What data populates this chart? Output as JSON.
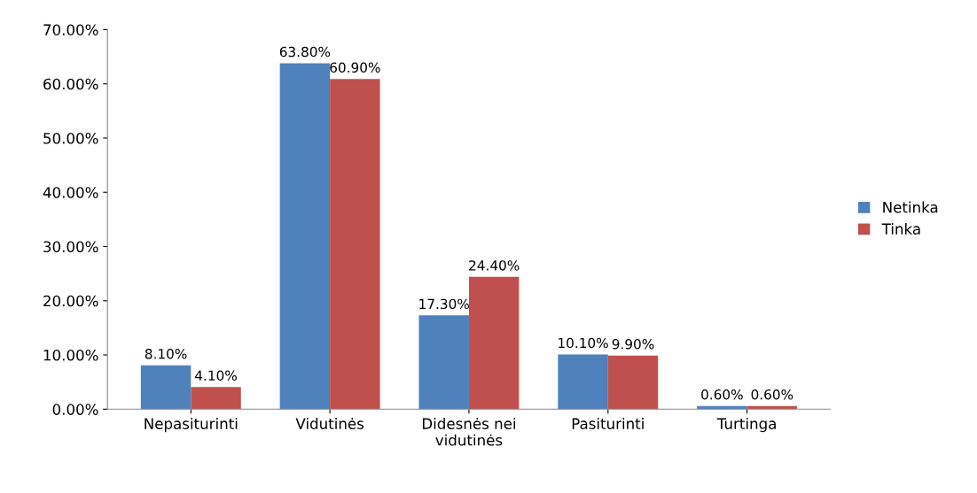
{
  "chart_data": {
    "type": "bar",
    "categories": [
      "Nepasiturinti",
      "Vidutinės",
      "Didesnės nei\nvidutinės",
      "Pasiturinti",
      "Turtinga"
    ],
    "series": [
      {
        "name": "Netinka",
        "color": "#4f81bd",
        "values": [
          8.1,
          63.8,
          17.3,
          10.1,
          0.6
        ],
        "value_labels": [
          "8.10%",
          "63.80%",
          "17.30%",
          "10.10%",
          "0.60%"
        ]
      },
      {
        "name": "Tinka",
        "color": "#c0504d",
        "values": [
          4.1,
          60.9,
          24.4,
          9.9,
          0.6
        ],
        "value_labels": [
          "4.10%",
          "60.90%",
          "24.40%",
          "9.90%",
          "0.60%"
        ]
      }
    ],
    "ylim": [
      0,
      70
    ],
    "yticks": [
      {
        "value": 0,
        "label": "0.00%"
      },
      {
        "value": 10,
        "label": "10.00%"
      },
      {
        "value": 20,
        "label": "20.00%"
      },
      {
        "value": 30,
        "label": "30.00%"
      },
      {
        "value": 40,
        "label": "40.00%"
      },
      {
        "value": 50,
        "label": "50.00%"
      },
      {
        "value": 60,
        "label": "60.00%"
      },
      {
        "value": 70,
        "label": "70.00%"
      }
    ],
    "grid": false,
    "legend": "right"
  }
}
